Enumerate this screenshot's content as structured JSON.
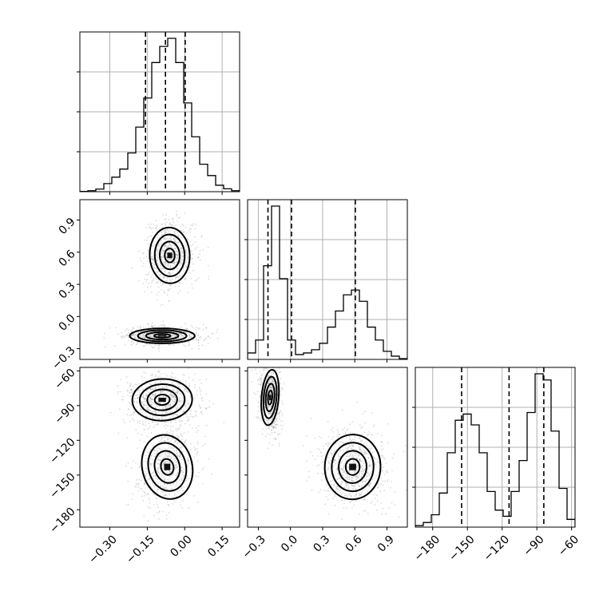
{
  "chart_data": {
    "type": "corner",
    "params": [
      {
        "range": [
          -0.42,
          0.22
        ],
        "ticks": [
          -0.3,
          -0.15,
          0.0,
          0.15
        ],
        "tick_labels": [
          "−0.30",
          "−0.15",
          "0.00",
          "0.15"
        ],
        "quantiles": [
          -0.157,
          -0.077,
          0.002
        ]
      },
      {
        "range": [
          -0.4,
          1.09
        ],
        "ticks": [
          -0.3,
          0.0,
          0.3,
          0.6,
          0.9
        ],
        "tick_labels": [
          "−0.3",
          "0.0",
          "0.3",
          "0.6",
          "0.9"
        ],
        "quantiles": [
          -0.21,
          0.01,
          0.605
        ]
      },
      {
        "range": [
          -195,
          -57
        ],
        "ticks": [
          -180,
          -150,
          -120,
          -90,
          -60
        ],
        "tick_labels": [
          "−180",
          "−150",
          "−120",
          "−90",
          "−60"
        ],
        "quantiles": [
          -155,
          -114,
          -84
        ]
      }
    ],
    "histograms": [
      {
        "param": 0,
        "edges": [
          -0.42,
          -0.388,
          -0.356,
          -0.324,
          -0.292,
          -0.26,
          -0.228,
          -0.196,
          -0.164,
          -0.132,
          -0.1,
          -0.068,
          -0.036,
          -0.004,
          0.028,
          0.06,
          0.092,
          0.124,
          0.156,
          0.188,
          0.22
        ],
        "counts": [
          0.002,
          0.006,
          0.016,
          0.05,
          0.09,
          0.14,
          0.24,
          0.4,
          0.58,
          0.8,
          0.9,
          0.95,
          0.8,
          0.55,
          0.34,
          0.17,
          0.1,
          0.04,
          0.018,
          0.006
        ]
      },
      {
        "param": 1,
        "edges": [
          -0.4,
          -0.3255,
          -0.251,
          -0.1765,
          -0.102,
          -0.0275,
          0.047,
          0.1215,
          0.196,
          0.2705,
          0.345,
          0.4195,
          0.494,
          0.5685,
          0.643,
          0.7175,
          0.792,
          0.8665,
          0.941,
          1.0155,
          1.09
        ],
        "counts": [
          0.04,
          0.12,
          0.58,
          0.95,
          0.5,
          0.12,
          0.03,
          0.04,
          0.06,
          0.1,
          0.2,
          0.3,
          0.4,
          0.43,
          0.36,
          0.2,
          0.12,
          0.05,
          0.02,
          0.005
        ]
      },
      {
        "param": 2,
        "edges": [
          -195,
          -188.1,
          -181.2,
          -174.3,
          -167.4,
          -160.5,
          -153.6,
          -146.7,
          -139.8,
          -132.9,
          -126,
          -119.1,
          -112.2,
          -105.3,
          -98.4,
          -91.5,
          -84.6,
          -77.7,
          -70.8,
          -63.9,
          -57
        ],
        "counts": [
          0.01,
          0.03,
          0.08,
          0.22,
          0.48,
          0.69,
          0.73,
          0.66,
          0.48,
          0.23,
          0.11,
          0.07,
          0.23,
          0.43,
          0.74,
          0.99,
          0.95,
          0.62,
          0.25,
          0.05
        ]
      }
    ],
    "pairs": [
      {
        "x_param": 0,
        "y_param": 1,
        "modes": [
          {
            "cx": -0.06,
            "cy": 0.57,
            "sx": 0.04,
            "sy": 0.13,
            "rho": 0.05,
            "weight": 0.5
          },
          {
            "cx": -0.09,
            "cy": -0.18,
            "sx": 0.065,
            "sy": 0.035,
            "rho": 0.0,
            "weight": 0.5
          }
        ]
      },
      {
        "x_param": 0,
        "y_param": 2,
        "modes": [
          {
            "cx": -0.09,
            "cy": -85,
            "sx": 0.06,
            "sy": 9,
            "rho": 0.05,
            "weight": 0.55
          },
          {
            "cx": -0.07,
            "cy": -143,
            "sx": 0.05,
            "sy": 14,
            "rho": 0.3,
            "weight": 0.45
          }
        ]
      },
      {
        "x_param": 1,
        "y_param": 2,
        "modes": [
          {
            "cx": -0.19,
            "cy": -83,
            "sx": 0.04,
            "sy": 12,
            "rho": -0.1,
            "weight": 0.45
          },
          {
            "cx": 0.58,
            "cy": -143,
            "sx": 0.13,
            "sy": 14,
            "rho": -0.05,
            "weight": 0.55
          }
        ]
      }
    ],
    "contour_levels_sigma": [
      0.5,
      1.0,
      1.5,
      2.0
    ],
    "grid": true,
    "point_color": "#9a9a9a",
    "line_color": "#000000"
  }
}
